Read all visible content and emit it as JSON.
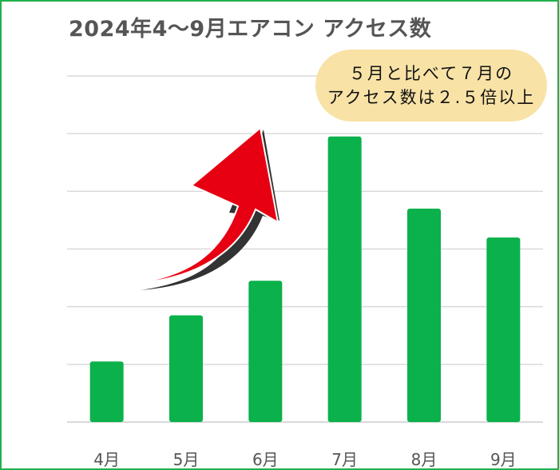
{
  "title": "2024年4〜9月エアコン アクセス数",
  "callout": {
    "line1": "５月と比べて７月の",
    "line2": "アクセス数は２.５倍以上"
  },
  "colors": {
    "bar": "#0bb14b",
    "grid": "#d9d9d9",
    "arrow_fill": "#e60012",
    "callout_bg": "#f8e2a6",
    "frame": "#21b04b"
  },
  "icons": [
    "arrow-up-right-icon"
  ],
  "chart_data": {
    "type": "bar",
    "categories": [
      "4月",
      "5月",
      "6月",
      "7月",
      "8月",
      "9月"
    ],
    "values": [
      1.05,
      1.85,
      2.45,
      4.95,
      3.7,
      3.2
    ],
    "ylim": [
      0,
      6
    ],
    "grid": true,
    "y_tick_labels_shown": false
  }
}
